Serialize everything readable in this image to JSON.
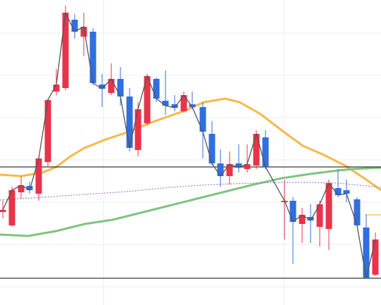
{
  "chart_data": {
    "type": "candlestick",
    "xlim": [
      0,
      541
    ],
    "ylim": [
      0,
      433
    ],
    "xticks": [
      147,
      403
    ],
    "yticks": [
      26,
      86,
      146,
      206,
      266,
      326,
      386
    ],
    "grid": true,
    "up_color": "#e8334a",
    "down_color": "#2f6fe0",
    "close_line_color": "#555555",
    "x": [
      4,
      17,
      30,
      42,
      55,
      68,
      80,
      93,
      106,
      119,
      132,
      145,
      158,
      171,
      184,
      196,
      209,
      222,
      235,
      248,
      261,
      273,
      288,
      301,
      313,
      326,
      339,
      351,
      364,
      377,
      404,
      416,
      429,
      441,
      454,
      467,
      480,
      492,
      507,
      520,
      533
    ],
    "open": [
      132,
      113,
      160,
      169,
      158,
      203,
      303,
      308,
      405,
      381,
      388,
      313,
      301,
      321,
      296,
      220,
      258,
      321,
      290,
      285,
      275,
      285,
      281,
      243,
      201,
      183,
      201,
      193,
      198,
      238,
      146,
      148,
      115,
      125,
      111,
      108,
      166,
      163,
      150,
      110,
      43
    ],
    "high": [
      148,
      168,
      183,
      175,
      211,
      293,
      335,
      425,
      413,
      415,
      393,
      328,
      343,
      338,
      308,
      288,
      328,
      323,
      333,
      298,
      303,
      303,
      288,
      261,
      221,
      218,
      228,
      228,
      248,
      248,
      178,
      153,
      138,
      143,
      148,
      178,
      193,
      178,
      153,
      128,
      103
    ],
    "low": [
      123,
      111,
      151,
      158,
      148,
      197,
      298,
      305,
      378,
      353,
      313,
      281,
      298,
      283,
      218,
      211,
      255,
      288,
      270,
      275,
      273,
      278,
      208,
      198,
      168,
      171,
      188,
      188,
      193,
      193,
      93,
      58,
      88,
      88,
      83,
      78,
      153,
      146,
      111,
      38,
      41
    ],
    "close": [
      135,
      163,
      170,
      163,
      208,
      291,
      313,
      415,
      388,
      395,
      315,
      307,
      321,
      296,
      223,
      278,
      325,
      293,
      283,
      280,
      298,
      281,
      246,
      201,
      183,
      200,
      195,
      200,
      243,
      196,
      148,
      118,
      128,
      120,
      143,
      173,
      156,
      158,
      113,
      38,
      93
    ],
    "series": [
      {
        "color": "#f7b84b",
        "x": [
          0,
          30,
          60,
          80,
          100,
          120,
          150,
          180,
          220,
          260,
          290,
          320,
          340,
          370,
          400,
          430,
          460,
          490,
          520,
          541
        ],
        "values": [
          185,
          183,
          188,
          196,
          211,
          223,
          235,
          245,
          261,
          275,
          288,
          293,
          288,
          271,
          248,
          226,
          213,
          198,
          178,
          163
        ]
      },
      {
        "color": "#7fc47f",
        "x": [
          0,
          40,
          80,
          120,
          160,
          200,
          240,
          280,
          320,
          360,
          400,
          440,
          480,
          500,
          541
        ],
        "values": [
          100,
          98,
          105,
          115,
          121,
          131,
          141,
          151,
          161,
          171,
          180,
          186,
          191,
          193,
          195
        ]
      },
      {
        "color": "#9b7fd4",
        "dashed": true,
        "x": [
          0,
          60,
          120,
          180,
          240,
          300,
          360,
          400,
          440,
          480,
          541
        ],
        "values": [
          149,
          153,
          157,
          161,
          167,
          171,
          173,
          174,
          174,
          173,
          167
        ]
      }
    ],
    "levels": [
      {
        "value": 196,
        "color": "#000000",
        "x0": 0
      },
      {
        "value": 38,
        "color": "#000000",
        "x0": 0
      },
      {
        "value": 128,
        "color": "#f5a623",
        "x0": 518
      }
    ]
  }
}
